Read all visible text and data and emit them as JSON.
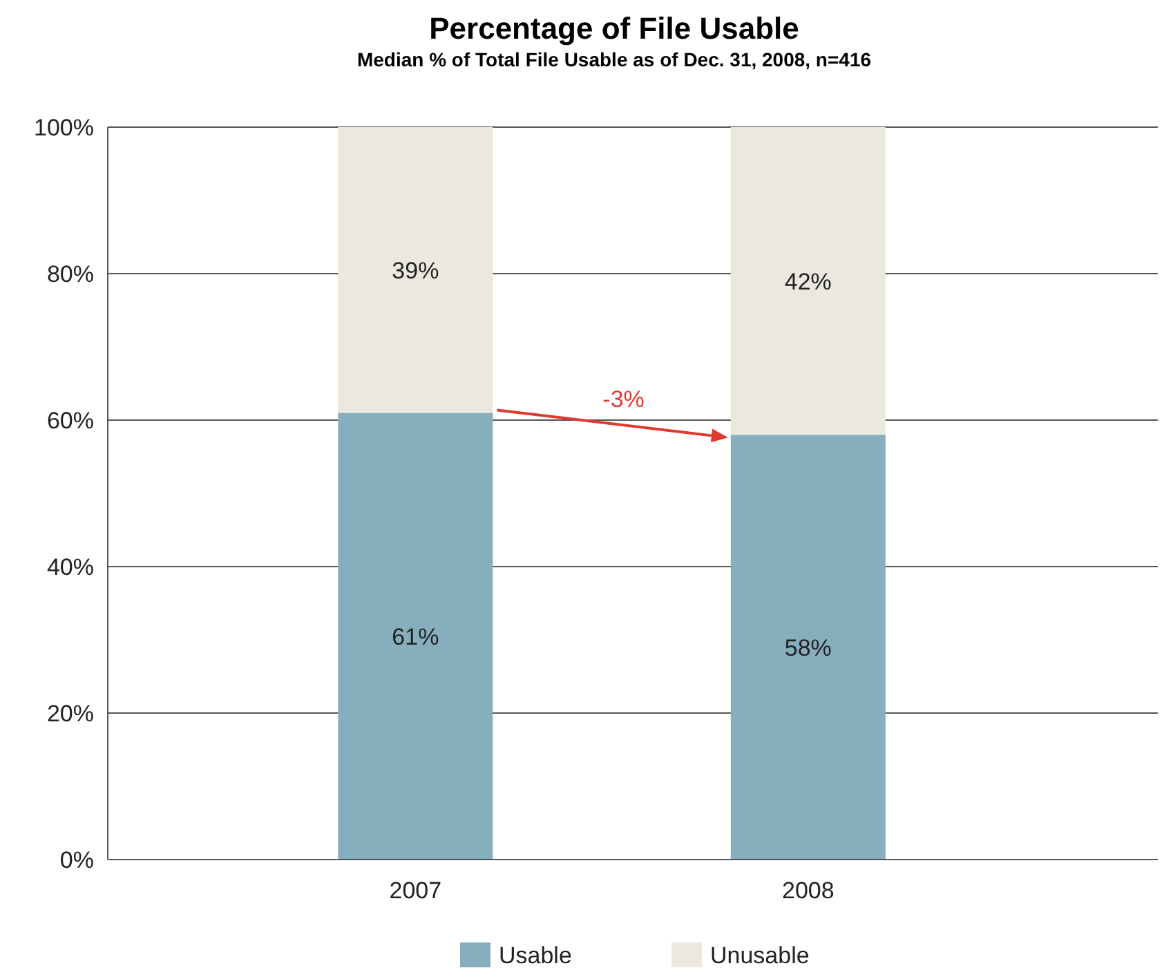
{
  "chart_data": {
    "type": "bar",
    "title": "Percentage of File Usable",
    "subtitle": "Median % of Total File Usable as of Dec. 31, 2008, n=416",
    "categories": [
      "2007",
      "2008"
    ],
    "series": [
      {
        "name": "Usable",
        "color": "#87aebd",
        "values": [
          61,
          58
        ],
        "value_labels": [
          "61%",
          "58%"
        ]
      },
      {
        "name": "Unusable",
        "color": "#ebe8e0",
        "values": [
          39,
          42
        ],
        "value_labels": [
          "39%",
          "42%"
        ]
      }
    ],
    "stacked": true,
    "ylim": [
      0,
      100
    ],
    "yticks": [
      {
        "value": 0,
        "label": "0%"
      },
      {
        "value": 20,
        "label": "20%"
      },
      {
        "value": 40,
        "label": "40%"
      },
      {
        "value": 60,
        "label": "60%"
      },
      {
        "value": 80,
        "label": "80%"
      },
      {
        "value": 100,
        "label": "100%"
      }
    ],
    "grid": "y",
    "legend": "bottom",
    "annotations": [
      "-3%"
    ]
  }
}
